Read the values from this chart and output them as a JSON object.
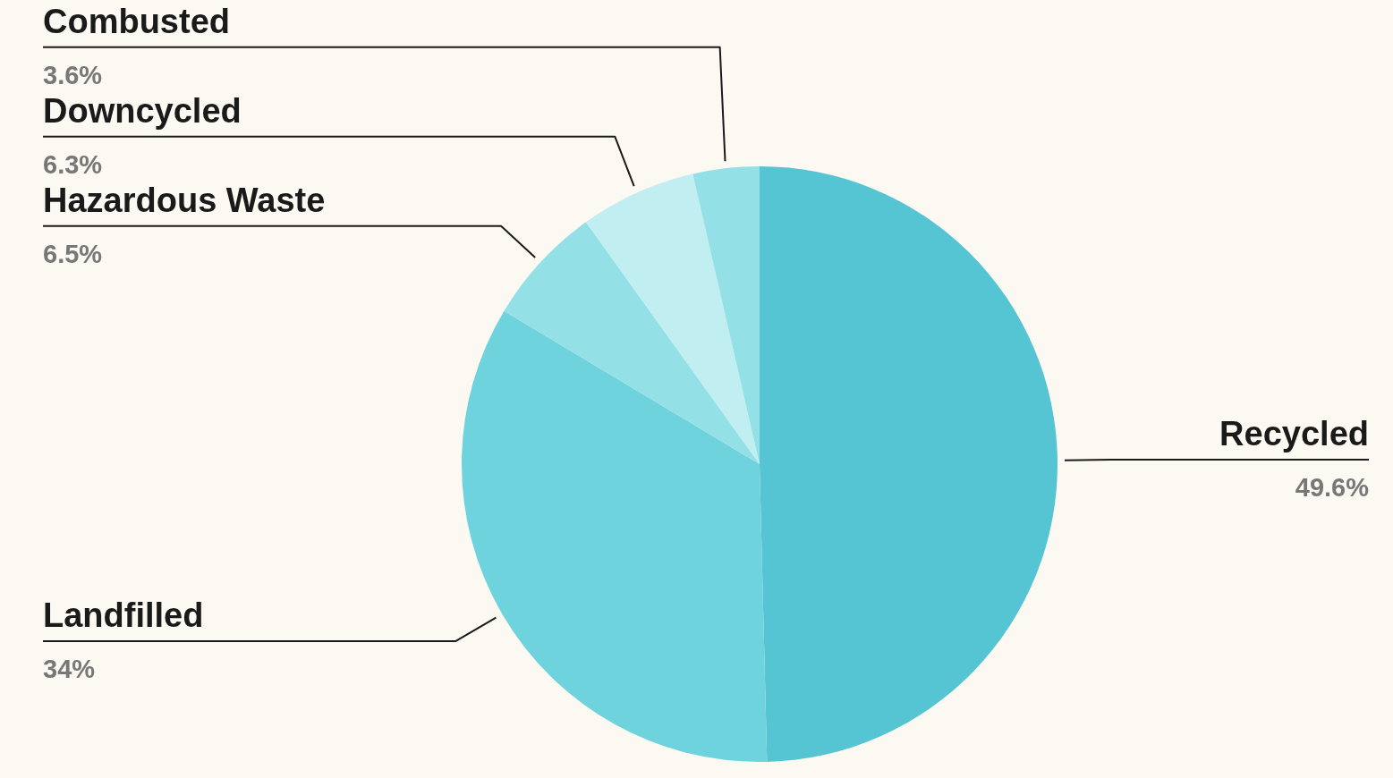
{
  "chart_data": {
    "type": "pie",
    "categories": [
      "Recycled",
      "Landfilled",
      "Hazardous Waste",
      "Downcycled",
      "Combusted"
    ],
    "values": [
      49.6,
      34,
      6.5,
      6.3,
      3.6
    ],
    "value_labels": [
      "49.6%",
      "34%",
      "6.5%",
      "6.3%",
      "3.6%"
    ],
    "colors": [
      "#55c4d3",
      "#6fd3dd",
      "#93e0e6",
      "#c1eef1",
      "#93e0e6"
    ]
  }
}
